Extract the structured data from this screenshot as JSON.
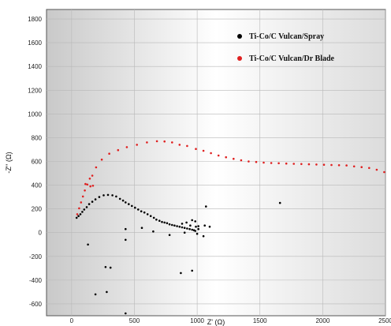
{
  "chart_data": {
    "type": "scatter",
    "title": "",
    "xlabel": "Z' (Ω)",
    "ylabel": "-Z'' (Ω)",
    "xlim": [
      -200,
      2500
    ],
    "ylim": [
      -700,
      1880
    ],
    "xticks": [
      0,
      500,
      1000,
      1500,
      2000,
      2500
    ],
    "yticks": [
      -600,
      -400,
      -200,
      0,
      200,
      400,
      600,
      800,
      1000,
      1200,
      1400,
      1600,
      1800
    ],
    "grid": true,
    "legend_position": "top-right",
    "series": [
      {
        "name": "Ti-Co/C Vulcan/Spray",
        "color": "#000000",
        "points": [
          [
            40,
            125
          ],
          [
            55,
            140
          ],
          [
            70,
            155
          ],
          [
            85,
            175
          ],
          [
            100,
            195
          ],
          [
            120,
            215
          ],
          [
            140,
            240
          ],
          [
            165,
            260
          ],
          [
            190,
            280
          ],
          [
            220,
            300
          ],
          [
            255,
            315
          ],
          [
            290,
            318
          ],
          [
            325,
            315
          ],
          [
            355,
            305
          ],
          [
            385,
            285
          ],
          [
            410,
            270
          ],
          [
            430,
            255
          ],
          [
            455,
            240
          ],
          [
            480,
            225
          ],
          [
            505,
            210
          ],
          [
            530,
            195
          ],
          [
            555,
            180
          ],
          [
            580,
            170
          ],
          [
            605,
            155
          ],
          [
            630,
            140
          ],
          [
            655,
            125
          ],
          [
            675,
            110
          ],
          [
            700,
            100
          ],
          [
            720,
            90
          ],
          [
            740,
            85
          ],
          [
            760,
            80
          ],
          [
            780,
            70
          ],
          [
            800,
            65
          ],
          [
            820,
            60
          ],
          [
            840,
            55
          ],
          [
            860,
            50
          ],
          [
            880,
            45
          ],
          [
            900,
            40
          ],
          [
            920,
            35
          ],
          [
            940,
            30
          ],
          [
            960,
            25
          ],
          [
            975,
            20
          ],
          [
            985,
            15
          ],
          [
            880,
            75
          ],
          [
            915,
            85
          ],
          [
            945,
            60
          ],
          [
            990,
            50
          ],
          [
            1010,
            30
          ],
          [
            1060,
            60
          ],
          [
            1100,
            50
          ],
          [
            960,
            105
          ],
          [
            985,
            95
          ],
          [
            1010,
            55
          ],
          [
            1070,
            220
          ],
          [
            1660,
            250
          ],
          [
            430,
            30
          ],
          [
            560,
            40
          ],
          [
            650,
            10
          ],
          [
            780,
            -20
          ],
          [
            900,
            0
          ],
          [
            1000,
            -10
          ],
          [
            1050,
            -30
          ],
          [
            430,
            -60
          ],
          [
            130,
            -100
          ],
          [
            270,
            -290
          ],
          [
            310,
            -295
          ],
          [
            190,
            -520
          ],
          [
            280,
            -500
          ],
          [
            870,
            -340
          ],
          [
            960,
            -320
          ],
          [
            430,
            -680
          ]
        ]
      },
      {
        "name": "Ti-Co/C Vulcan/Dr Blade",
        "color": "#e02020",
        "points": [
          [
            45,
            155
          ],
          [
            60,
            205
          ],
          [
            75,
            255
          ],
          [
            90,
            305
          ],
          [
            105,
            355
          ],
          [
            125,
            405
          ],
          [
            145,
            455
          ],
          [
            165,
            480
          ],
          [
            195,
            550
          ],
          [
            240,
            615
          ],
          [
            300,
            665
          ],
          [
            370,
            695
          ],
          [
            440,
            720
          ],
          [
            520,
            740
          ],
          [
            600,
            760
          ],
          [
            680,
            770
          ],
          [
            740,
            768
          ],
          [
            800,
            760
          ],
          [
            860,
            740
          ],
          [
            920,
            730
          ],
          [
            990,
            705
          ],
          [
            1050,
            690
          ],
          [
            1110,
            670
          ],
          [
            1170,
            650
          ],
          [
            1230,
            635
          ],
          [
            1290,
            622
          ],
          [
            1350,
            610
          ],
          [
            1410,
            600
          ],
          [
            1470,
            595
          ],
          [
            1530,
            590
          ],
          [
            1590,
            587
          ],
          [
            1650,
            585
          ],
          [
            1710,
            582
          ],
          [
            1770,
            580
          ],
          [
            1830,
            578
          ],
          [
            1890,
            576
          ],
          [
            1950,
            574
          ],
          [
            2010,
            572
          ],
          [
            2070,
            570
          ],
          [
            2130,
            568
          ],
          [
            2190,
            566
          ],
          [
            2250,
            558
          ],
          [
            2310,
            552
          ],
          [
            2370,
            545
          ],
          [
            2430,
            530
          ],
          [
            2490,
            510
          ],
          [
            150,
            390
          ],
          [
            170,
            395
          ],
          [
            110,
            410
          ]
        ]
      }
    ]
  }
}
